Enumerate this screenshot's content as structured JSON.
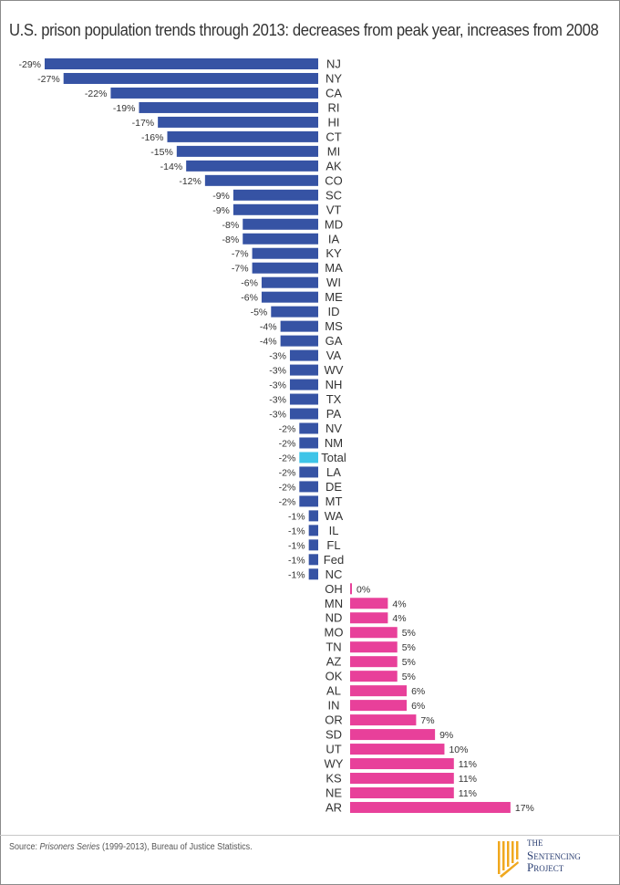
{
  "title": "U.S. prison population trends through 2013: decreases from peak year, increases from 2008",
  "source": {
    "prefix": "Source: ",
    "italic": "Prisoners Series",
    "rest": " (1999-2013), Bureau of Justice Statistics."
  },
  "logo": {
    "line1": "THE",
    "line2": "Sentencing",
    "line3": "Project"
  },
  "colors": {
    "negative": "#3653a4",
    "positive": "#e8409a",
    "total": "#3ec4e8",
    "text": "#333333"
  },
  "chart_data": {
    "type": "bar",
    "orientation": "horizontal-diverging",
    "title": "U.S. prison population trends through 2013: decreases from peak year, increases from 2008",
    "categories": [
      "NJ",
      "NY",
      "CA",
      "RI",
      "HI",
      "CT",
      "MI",
      "AK",
      "CO",
      "SC",
      "VT",
      "MD",
      "IA",
      "KY",
      "MA",
      "WI",
      "ME",
      "ID",
      "MS",
      "GA",
      "VA",
      "WV",
      "NH",
      "TX",
      "PA",
      "NV",
      "NM",
      "Total",
      "LA",
      "DE",
      "MT",
      "WA",
      "IL",
      "FL",
      "Fed",
      "NC",
      "OH",
      "MN",
      "ND",
      "MO",
      "TN",
      "AZ",
      "OK",
      "AL",
      "IN",
      "OR",
      "SD",
      "UT",
      "WY",
      "KS",
      "NE",
      "AR"
    ],
    "values": [
      -29,
      -27,
      -22,
      -19,
      -17,
      -16,
      -15,
      -14,
      -12,
      -9,
      -9,
      -8,
      -8,
      -7,
      -7,
      -6,
      -6,
      -5,
      -4,
      -4,
      -3,
      -3,
      -3,
      -3,
      -3,
      -2,
      -2,
      -2,
      -2,
      -2,
      -2,
      -1,
      -1,
      -1,
      -1,
      -1,
      0,
      4,
      4,
      5,
      5,
      5,
      5,
      6,
      6,
      7,
      9,
      10,
      11,
      11,
      11,
      17
    ],
    "value_format": "percent",
    "xlim": [
      -29,
      17
    ],
    "grid": false,
    "legend": "none"
  }
}
